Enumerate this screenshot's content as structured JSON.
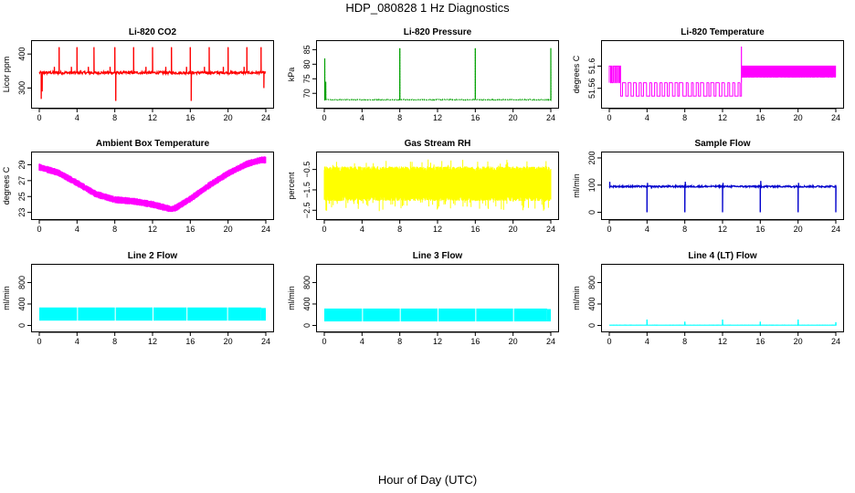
{
  "figure": {
    "title": "HDP_080828  1 Hz Diagnostics",
    "xlabel": "Hour of Day (UTC)"
  },
  "chart_data": [
    {
      "id": "co2",
      "type": "line",
      "title": "Li-820 CO2",
      "ylabel": "Licor ppm",
      "color": "#ff0000",
      "xlim": [
        0,
        24
      ],
      "ylim": [
        250,
        430
      ],
      "xticks": [
        0,
        4,
        8,
        12,
        16,
        20,
        24
      ],
      "yticks": [
        300,
        400
      ],
      "baseline": 345,
      "noise": 4,
      "spikes": [
        {
          "x": 0.2,
          "y": 268
        },
        {
          "x": 0.3,
          "y": 290
        },
        {
          "x": 1.6,
          "y": 362
        },
        {
          "x": 2.1,
          "y": 420
        },
        {
          "x": 3.4,
          "y": 362
        },
        {
          "x": 4.0,
          "y": 420
        },
        {
          "x": 5.2,
          "y": 362
        },
        {
          "x": 5.8,
          "y": 420
        },
        {
          "x": 7.5,
          "y": 362
        },
        {
          "x": 8.0,
          "y": 420
        },
        {
          "x": 8.1,
          "y": 262
        },
        {
          "x": 10.0,
          "y": 420
        },
        {
          "x": 11.3,
          "y": 362
        },
        {
          "x": 12.0,
          "y": 420
        },
        {
          "x": 13.4,
          "y": 362
        },
        {
          "x": 14.0,
          "y": 420
        },
        {
          "x": 15.6,
          "y": 362
        },
        {
          "x": 16.0,
          "y": 420
        },
        {
          "x": 16.1,
          "y": 262
        },
        {
          "x": 17.5,
          "y": 362
        },
        {
          "x": 18.0,
          "y": 420
        },
        {
          "x": 19.5,
          "y": 362
        },
        {
          "x": 20.0,
          "y": 420
        },
        {
          "x": 21.7,
          "y": 362
        },
        {
          "x": 22.0,
          "y": 420
        },
        {
          "x": 23.5,
          "y": 420
        },
        {
          "x": 23.8,
          "y": 300
        }
      ]
    },
    {
      "id": "pressure",
      "type": "line",
      "title": "Li-820 Pressure",
      "ylabel": "kPa",
      "color": "#00a000",
      "xlim": [
        0,
        24
      ],
      "ylim": [
        66,
        87
      ],
      "xticks": [
        0,
        4,
        8,
        12,
        16,
        20,
        24
      ],
      "yticks": [
        70,
        75,
        80,
        85
      ],
      "baseline": 67.8,
      "noise": 0.15,
      "spikes": [
        {
          "x": 0.05,
          "y": 82
        },
        {
          "x": 0.15,
          "y": 74
        },
        {
          "x": 8.0,
          "y": 85.5
        },
        {
          "x": 16.0,
          "y": 85.5
        },
        {
          "x": 24.0,
          "y": 85.5
        }
      ]
    },
    {
      "id": "temperature",
      "type": "step",
      "title": "Li-820 Temperature",
      "ylabel": "degrees C",
      "color": "#ff00ff",
      "xlim": [
        0,
        24
      ],
      "ylim": [
        51.53,
        51.64
      ],
      "xticks": [
        0,
        4,
        8,
        12,
        16,
        20,
        24
      ],
      "yticks": [
        51.56,
        51.6
      ],
      "levels": [
        51.57,
        51.6,
        51.546
      ],
      "segments": [
        {
          "from": 0.0,
          "to": 1.2,
          "dense": [
            51.57,
            51.6
          ],
          "period": 0.22
        },
        {
          "from": 1.2,
          "to": 14.0,
          "dense": [
            51.57,
            51.546
          ],
          "period": 0.55
        },
        {
          "from": 14.0,
          "to": 24.0,
          "dense": [
            51.58,
            51.6
          ],
          "period": 0.13
        }
      ],
      "top_spike": {
        "x": 14.0,
        "y": 51.635
      }
    },
    {
      "id": "ambient",
      "type": "band",
      "title": "Ambient Box Temperature",
      "ylabel": "degrees C",
      "color": "#ff00ff",
      "xlim": [
        0,
        24
      ],
      "ylim": [
        22.5,
        30.2
      ],
      "xticks": [
        0,
        4,
        8,
        12,
        16,
        20,
        24
      ],
      "yticks": [
        23,
        25,
        27,
        29
      ],
      "x": [
        0,
        2,
        4,
        6,
        8,
        10,
        12,
        14,
        14.5,
        16,
        18,
        20,
        22,
        23.5,
        24
      ],
      "values": [
        28.7,
        28.0,
        26.7,
        25.3,
        24.6,
        24.4,
        24.0,
        23.4,
        23.6,
        24.7,
        26.4,
        27.9,
        29.1,
        29.6,
        29.6
      ],
      "band": 0.45
    },
    {
      "id": "rh",
      "type": "noise",
      "title": "Gas Stream RH",
      "ylabel": "percent",
      "color": "#ffff00",
      "xlim": [
        0,
        24
      ],
      "ylim": [
        -2.8,
        0.2
      ],
      "xticks": [
        0,
        4,
        8,
        12,
        16,
        20,
        24
      ],
      "yticks": [
        -2.5,
        -1.5,
        -0.5
      ],
      "center": -1.2,
      "half_range": 0.85,
      "outlier_min": -2.55,
      "outlier_max": 0.0
    },
    {
      "id": "sample",
      "type": "line",
      "title": "Sample Flow",
      "ylabel": "ml/min",
      "color": "#0000cc",
      "xlim": [
        0,
        24
      ],
      "ylim": [
        -15,
        210
      ],
      "xticks": [
        0,
        4,
        8,
        12,
        16,
        20,
        24
      ],
      "yticks": [
        0,
        100,
        200
      ],
      "baseline": 95,
      "noise": 3,
      "spikes": [
        {
          "x": 0.05,
          "y": 112
        },
        {
          "x": 4.0,
          "y": 0
        },
        {
          "x": 4.05,
          "y": 108
        },
        {
          "x": 8.0,
          "y": 0
        },
        {
          "x": 8.05,
          "y": 112
        },
        {
          "x": 12.0,
          "y": 0
        },
        {
          "x": 12.05,
          "y": 108
        },
        {
          "x": 16.0,
          "y": 0
        },
        {
          "x": 16.05,
          "y": 115
        },
        {
          "x": 20.0,
          "y": 0
        },
        {
          "x": 20.05,
          "y": 108
        },
        {
          "x": 24.0,
          "y": 0
        }
      ]
    },
    {
      "id": "line2",
      "type": "block",
      "title": "Line 2 Flow",
      "ylabel": "ml/min",
      "color": "#00ffff",
      "xlim": [
        0,
        24
      ],
      "ylim": [
        -60,
        1080
      ],
      "xticks": [
        0,
        4,
        8,
        12,
        16,
        20,
        24
      ],
      "yticks": [
        0,
        400,
        800
      ],
      "low": 90,
      "high": 335,
      "gaps": [
        4,
        8,
        12,
        15.6,
        19.9
      ],
      "tail_drop": 23.5
    },
    {
      "id": "line3",
      "type": "block",
      "title": "Line 3 Flow",
      "ylabel": "ml/min",
      "color": "#00ffff",
      "xlim": [
        0,
        24
      ],
      "ylim": [
        -60,
        1080
      ],
      "xticks": [
        0,
        4,
        8,
        12,
        16,
        20,
        24
      ],
      "yticks": [
        0,
        400,
        800
      ],
      "low": 75,
      "high": 315,
      "gaps": [
        4,
        8,
        12,
        16,
        20
      ],
      "tail_drop": 23.6
    },
    {
      "id": "line4",
      "type": "line",
      "title": "Line 4 (LT) Flow",
      "ylabel": "ml/min",
      "color": "#00ffff",
      "xlim": [
        0,
        24
      ],
      "ylim": [
        -60,
        1080
      ],
      "xticks": [
        0,
        4,
        8,
        12,
        16,
        20,
        24
      ],
      "yticks": [
        0,
        400,
        800
      ],
      "baseline": 5,
      "noise": 1,
      "spikes": [
        {
          "x": 4.0,
          "y": 110
        },
        {
          "x": 8.0,
          "y": 70
        },
        {
          "x": 12.0,
          "y": 110
        },
        {
          "x": 16.0,
          "y": 70
        },
        {
          "x": 20.0,
          "y": 110
        },
        {
          "x": 24.0,
          "y": 60
        }
      ]
    }
  ]
}
